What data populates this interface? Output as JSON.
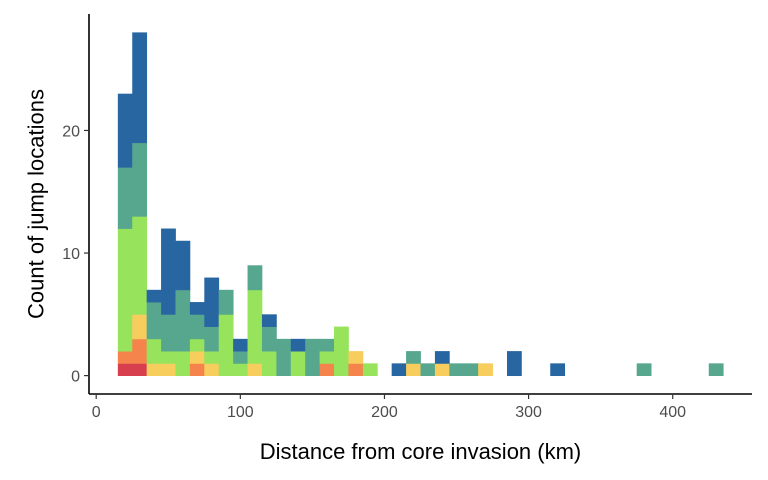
{
  "chart_data": {
    "type": "bar",
    "stacked": true,
    "title": "",
    "xlabel": "Distance from core invasion (km)",
    "ylabel": "Count of jump locations",
    "bin_width_km": 10,
    "xlim": [
      -5,
      455
    ],
    "ylim": [
      -1.5,
      29.5
    ],
    "xticks": [
      0,
      100,
      200,
      300,
      400
    ],
    "yticks": [
      0,
      10,
      20
    ],
    "grid": false,
    "legend": "none",
    "stack_order": [
      "s1",
      "s2",
      "s3",
      "s4",
      "s5",
      "s6"
    ],
    "colors": {
      "s1": "#d73f4f",
      "s2": "#f4844c",
      "s3": "#f7cd5e",
      "s4": "#97e35c",
      "s5": "#57a78f",
      "s6": "#2866a1"
    },
    "bins": [
      {
        "x": 20,
        "s1": 1,
        "s2": 1,
        "s3": 0,
        "s4": 10,
        "s5": 5,
        "s6": 6
      },
      {
        "x": 30,
        "s1": 1,
        "s2": 2,
        "s3": 2,
        "s4": 8,
        "s5": 6,
        "s6": 9
      },
      {
        "x": 40,
        "s1": 0,
        "s2": 0,
        "s3": 1,
        "s4": 2,
        "s5": 3,
        "s6": 1
      },
      {
        "x": 50,
        "s1": 0,
        "s2": 0,
        "s3": 1,
        "s4": 1,
        "s5": 3,
        "s6": 7
      },
      {
        "x": 60,
        "s1": 0,
        "s2": 0,
        "s3": 0,
        "s4": 2,
        "s5": 5,
        "s6": 4
      },
      {
        "x": 70,
        "s1": 0,
        "s2": 1,
        "s3": 1,
        "s4": 1,
        "s5": 2,
        "s6": 1
      },
      {
        "x": 80,
        "s1": 0,
        "s2": 0,
        "s3": 1,
        "s4": 1,
        "s5": 2,
        "s6": 4
      },
      {
        "x": 90,
        "s1": 0,
        "s2": 0,
        "s3": 0,
        "s4": 5,
        "s5": 2,
        "s6": 0
      },
      {
        "x": 100,
        "s1": 0,
        "s2": 0,
        "s3": 0,
        "s4": 1,
        "s5": 1,
        "s6": 1
      },
      {
        "x": 110,
        "s1": 0,
        "s2": 0,
        "s3": 1,
        "s4": 6,
        "s5": 2,
        "s6": 0
      },
      {
        "x": 120,
        "s1": 0,
        "s2": 0,
        "s3": 0,
        "s4": 2,
        "s5": 2,
        "s6": 1
      },
      {
        "x": 130,
        "s1": 0,
        "s2": 0,
        "s3": 0,
        "s4": 0,
        "s5": 3,
        "s6": 0
      },
      {
        "x": 140,
        "s1": 0,
        "s2": 0,
        "s3": 0,
        "s4": 2,
        "s5": 0,
        "s6": 1
      },
      {
        "x": 150,
        "s1": 0,
        "s2": 0,
        "s3": 0,
        "s4": 0,
        "s5": 3,
        "s6": 0
      },
      {
        "x": 160,
        "s1": 0,
        "s2": 1,
        "s3": 0,
        "s4": 1,
        "s5": 1,
        "s6": 0
      },
      {
        "x": 170,
        "s1": 0,
        "s2": 0,
        "s3": 0,
        "s4": 4,
        "s5": 0,
        "s6": 0
      },
      {
        "x": 180,
        "s1": 0,
        "s2": 1,
        "s3": 1,
        "s4": 0,
        "s5": 0,
        "s6": 0
      },
      {
        "x": 190,
        "s1": 0,
        "s2": 0,
        "s3": 0,
        "s4": 1,
        "s5": 0,
        "s6": 0
      },
      {
        "x": 210,
        "s1": 0,
        "s2": 0,
        "s3": 0,
        "s4": 0,
        "s5": 0,
        "s6": 1
      },
      {
        "x": 220,
        "s1": 0,
        "s2": 0,
        "s3": 1,
        "s4": 0,
        "s5": 1,
        "s6": 0
      },
      {
        "x": 230,
        "s1": 0,
        "s2": 0,
        "s3": 0,
        "s4": 0,
        "s5": 1,
        "s6": 0
      },
      {
        "x": 240,
        "s1": 0,
        "s2": 0,
        "s3": 1,
        "s4": 0,
        "s5": 0,
        "s6": 1
      },
      {
        "x": 250,
        "s1": 0,
        "s2": 0,
        "s3": 0,
        "s4": 0,
        "s5": 1,
        "s6": 0
      },
      {
        "x": 260,
        "s1": 0,
        "s2": 0,
        "s3": 0,
        "s4": 0,
        "s5": 1,
        "s6": 0
      },
      {
        "x": 270,
        "s1": 0,
        "s2": 0,
        "s3": 1,
        "s4": 0,
        "s5": 0,
        "s6": 0
      },
      {
        "x": 290,
        "s1": 0,
        "s2": 0,
        "s3": 0,
        "s4": 0,
        "s5": 0,
        "s6": 2
      },
      {
        "x": 320,
        "s1": 0,
        "s2": 0,
        "s3": 0,
        "s4": 0,
        "s5": 0,
        "s6": 1
      },
      {
        "x": 380,
        "s1": 0,
        "s2": 0,
        "s3": 0,
        "s4": 0,
        "s5": 1,
        "s6": 0
      },
      {
        "x": 430,
        "s1": 0,
        "s2": 0,
        "s3": 0,
        "s4": 0,
        "s5": 1,
        "s6": 0
      }
    ]
  }
}
